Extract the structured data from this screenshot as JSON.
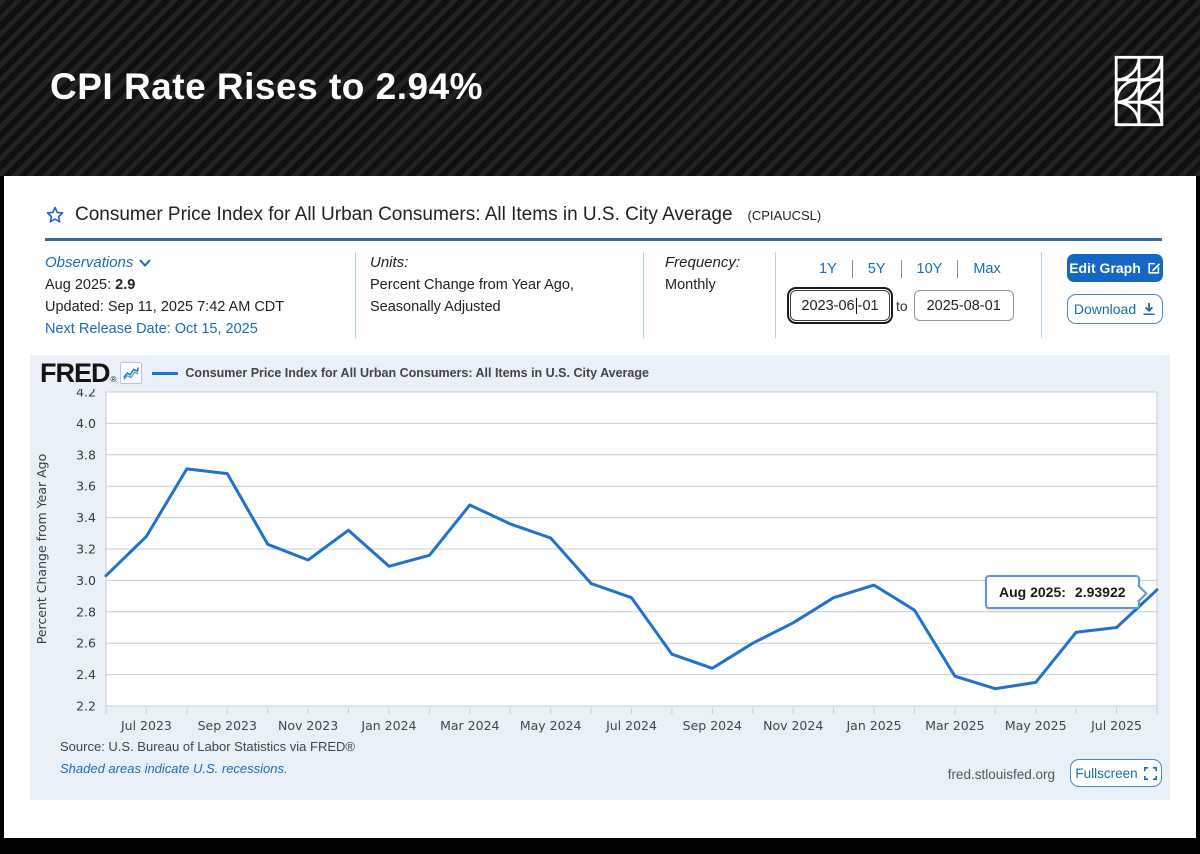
{
  "banner": {
    "title": "CPI Rate Rises to 2.94%"
  },
  "series_header": {
    "title": "Consumer Price Index for All Urban Consumers: All Items in U.S. City Average",
    "series_id": "(CPIAUCSL)"
  },
  "info": {
    "observations": {
      "label": "Observations",
      "period": "Aug 2025:",
      "value": "2.9",
      "updated": "Updated: Sep 11, 2025 7:42 AM CDT",
      "next_release": "Next Release Date: Oct 15, 2025"
    },
    "units": {
      "label": "Units:",
      "line1": "Percent Change from Year Ago,",
      "line2": "Seasonally Adjusted"
    },
    "frequency": {
      "label": "Frequency:",
      "value": "Monthly"
    },
    "ranges": [
      "1Y",
      "5Y",
      "10Y",
      "Max"
    ],
    "date_from": {
      "part1": "2023-06",
      "part2": "-01"
    },
    "to_label": "to",
    "date_to": "2025-08-01",
    "edit_graph_label": "Edit Graph",
    "download_label": "Download"
  },
  "chart": {
    "brand": "FRED",
    "reg_mark": "®",
    "legend_label": "Consumer Price Index for All Urban Consumers: All Items in U.S. City Average",
    "tooltip": {
      "label": "Aug 2025:",
      "value": "2.93922"
    },
    "footer": {
      "source": "Source: U.S. Bureau of Labor Statistics via FRED®",
      "recessions_note": "Shaded areas indicate U.S. recessions.",
      "site": "fred.stlouisfed.org",
      "fullscreen_label": "Fullscreen"
    }
  },
  "chart_data": {
    "type": "line",
    "title": "Consumer Price Index for All Urban Consumers: All Items in U.S. City Average",
    "ylabel": "Percent Change from Year Ago",
    "ylim": [
      2.2,
      4.2
    ],
    "ytick_step": 0.2,
    "grid": true,
    "legend_position": "top",
    "line_color": "#2171cd",
    "x": [
      "Jun 2023",
      "Jul 2023",
      "Aug 2023",
      "Sep 2023",
      "Oct 2023",
      "Nov 2023",
      "Dec 2023",
      "Jan 2024",
      "Feb 2024",
      "Mar 2024",
      "Apr 2024",
      "May 2024",
      "Jun 2024",
      "Jul 2024",
      "Aug 2024",
      "Sep 2024",
      "Oct 2024",
      "Nov 2024",
      "Dec 2024",
      "Jan 2025",
      "Feb 2025",
      "Mar 2025",
      "Apr 2025",
      "May 2025",
      "Jun 2025",
      "Jul 2025",
      "Aug 2025"
    ],
    "values": [
      3.03,
      3.28,
      3.71,
      3.68,
      3.23,
      3.13,
      3.32,
      3.09,
      3.16,
      3.48,
      3.36,
      3.27,
      2.98,
      2.89,
      2.53,
      2.44,
      2.6,
      2.73,
      2.89,
      2.97,
      2.81,
      2.39,
      2.31,
      2.35,
      2.67,
      2.7,
      2.94
    ],
    "xtick_labels": [
      "Jul 2023",
      "Sep 2023",
      "Nov 2023",
      "Jan 2024",
      "Mar 2024",
      "May 2024",
      "Jul 2024",
      "Sep 2024",
      "Nov 2024",
      "Jan 2025",
      "Mar 2025",
      "May 2025",
      "Jul 2025"
    ],
    "xtick_positions": [
      1,
      3,
      5,
      7,
      9,
      11,
      13,
      15,
      17,
      19,
      21,
      23,
      25
    ]
  },
  "colors": {
    "accent_blue": "#1a6cb5",
    "edit_button": "#1666c5",
    "line": "#2171cd",
    "title_rule": "#3d6a94",
    "chart_bg": "#e9f0f8",
    "grid": "#cccccc",
    "tooltip_border": "#5b9bd5"
  }
}
